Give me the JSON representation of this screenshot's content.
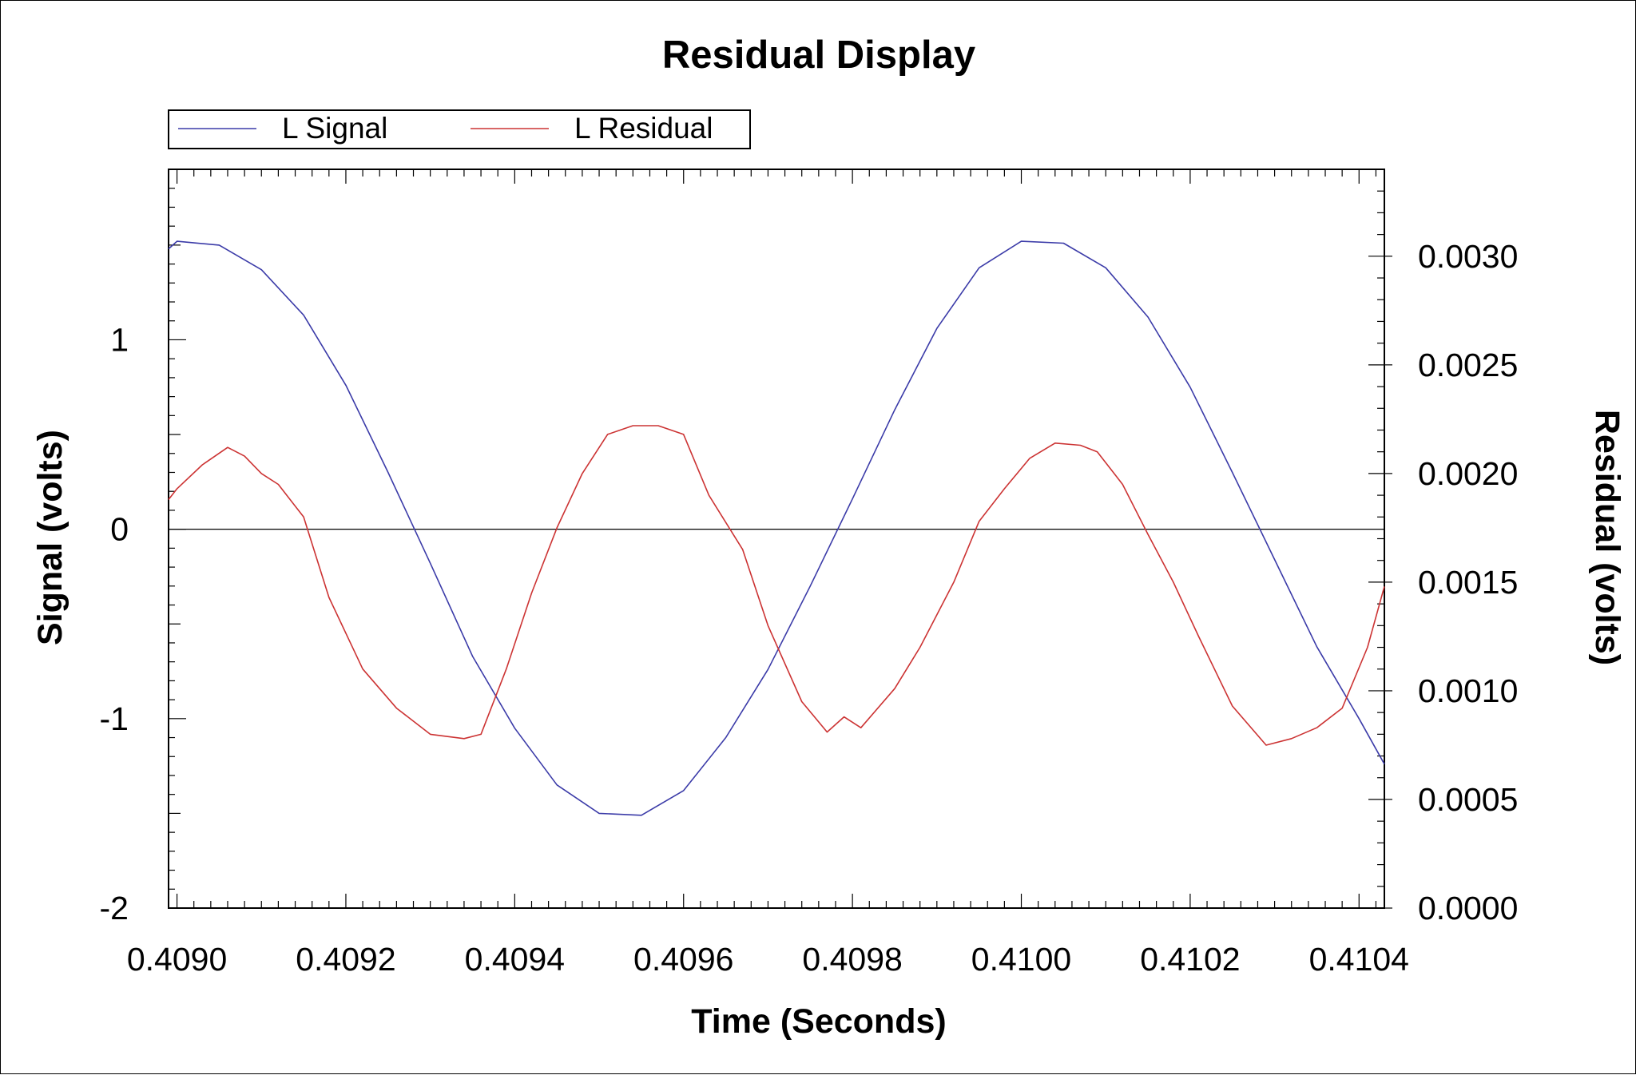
{
  "chart_data": {
    "type": "line",
    "title": "Residual Display",
    "xlabel": "Time (Seconds)",
    "ylabel_left": "Signal (volts)",
    "ylabel_right": "Residual (volts)",
    "xlim": [
      0.40899,
      0.41043
    ],
    "ylim_left": [
      -2,
      1.9
    ],
    "ylim_right": [
      0.0,
      0.0034
    ],
    "x_ticks": [
      "0.4090",
      "0.4092",
      "0.4094",
      "0.4096",
      "0.4098",
      "0.4100",
      "0.4102",
      "0.4104"
    ],
    "x_tick_values": [
      0.409,
      0.4092,
      0.4094,
      0.4096,
      0.4098,
      0.41,
      0.4102,
      0.4104
    ],
    "y_left_ticks": [
      "1",
      "0",
      "-1",
      "-2"
    ],
    "y_left_tick_values": [
      1,
      0,
      -1,
      -2
    ],
    "y_right_ticks": [
      "0.0030",
      "0.0025",
      "0.0020",
      "0.0015",
      "0.0010",
      "0.0005",
      "0.0000"
    ],
    "y_right_tick_values": [
      0.003,
      0.0025,
      0.002,
      0.0015,
      0.001,
      0.0005,
      0.0
    ],
    "zero_line": true,
    "grid": false,
    "legend_position": "top-left",
    "series": [
      {
        "name": "L Signal",
        "axis": "left",
        "color": "#3b3ba8",
        "x": [
          0.40899,
          0.409,
          0.40905,
          0.4091,
          0.40915,
          0.4092,
          0.40925,
          0.4093,
          0.40935,
          0.4094,
          0.40945,
          0.4095,
          0.40955,
          0.4096,
          0.40965,
          0.4097,
          0.40975,
          0.4098,
          0.40985,
          0.4099,
          0.40995,
          0.41,
          0.41005,
          0.4101,
          0.41015,
          0.4102,
          0.41025,
          0.4103,
          0.41035,
          0.4104,
          0.41043
        ],
        "y": [
          1.48,
          1.52,
          1.5,
          1.37,
          1.13,
          0.76,
          0.3,
          -0.18,
          -0.67,
          -1.05,
          -1.35,
          -1.5,
          -1.51,
          -1.38,
          -1.1,
          -0.74,
          -0.3,
          0.16,
          0.63,
          1.06,
          1.38,
          1.52,
          1.51,
          1.38,
          1.12,
          0.75,
          0.3,
          -0.16,
          -0.62,
          -1.0,
          -1.24
        ]
      },
      {
        "name": "L Residual",
        "axis": "right",
        "color": "#cc3333",
        "x": [
          0.40899,
          0.409,
          0.40903,
          0.40906,
          0.40908,
          0.4091,
          0.40912,
          0.40915,
          0.40918,
          0.40922,
          0.40926,
          0.4093,
          0.40934,
          0.40936,
          0.40939,
          0.40942,
          0.40945,
          0.40948,
          0.40951,
          0.40954,
          0.40957,
          0.4096,
          0.40963,
          0.40967,
          0.4097,
          0.40974,
          0.40977,
          0.40979,
          0.40981,
          0.40985,
          0.40988,
          0.40992,
          0.40995,
          0.40998,
          0.41001,
          0.41004,
          0.41007,
          0.41009,
          0.41012,
          0.41015,
          0.41018,
          0.41021,
          0.41025,
          0.41029,
          0.41032,
          0.41035,
          0.41038,
          0.41041,
          0.41043
        ],
        "y": [
          0.00188,
          0.00193,
          0.00204,
          0.00212,
          0.00208,
          0.002,
          0.00195,
          0.0018,
          0.00143,
          0.0011,
          0.00092,
          0.0008,
          0.00078,
          0.0008,
          0.0011,
          0.00145,
          0.00175,
          0.002,
          0.00218,
          0.00222,
          0.00222,
          0.00218,
          0.0019,
          0.00165,
          0.0013,
          0.00095,
          0.00081,
          0.00088,
          0.00083,
          0.00101,
          0.0012,
          0.0015,
          0.00178,
          0.00193,
          0.00207,
          0.00214,
          0.00213,
          0.0021,
          0.00195,
          0.00172,
          0.0015,
          0.00125,
          0.00093,
          0.00075,
          0.00078,
          0.00083,
          0.00092,
          0.0012,
          0.00148
        ]
      }
    ]
  }
}
